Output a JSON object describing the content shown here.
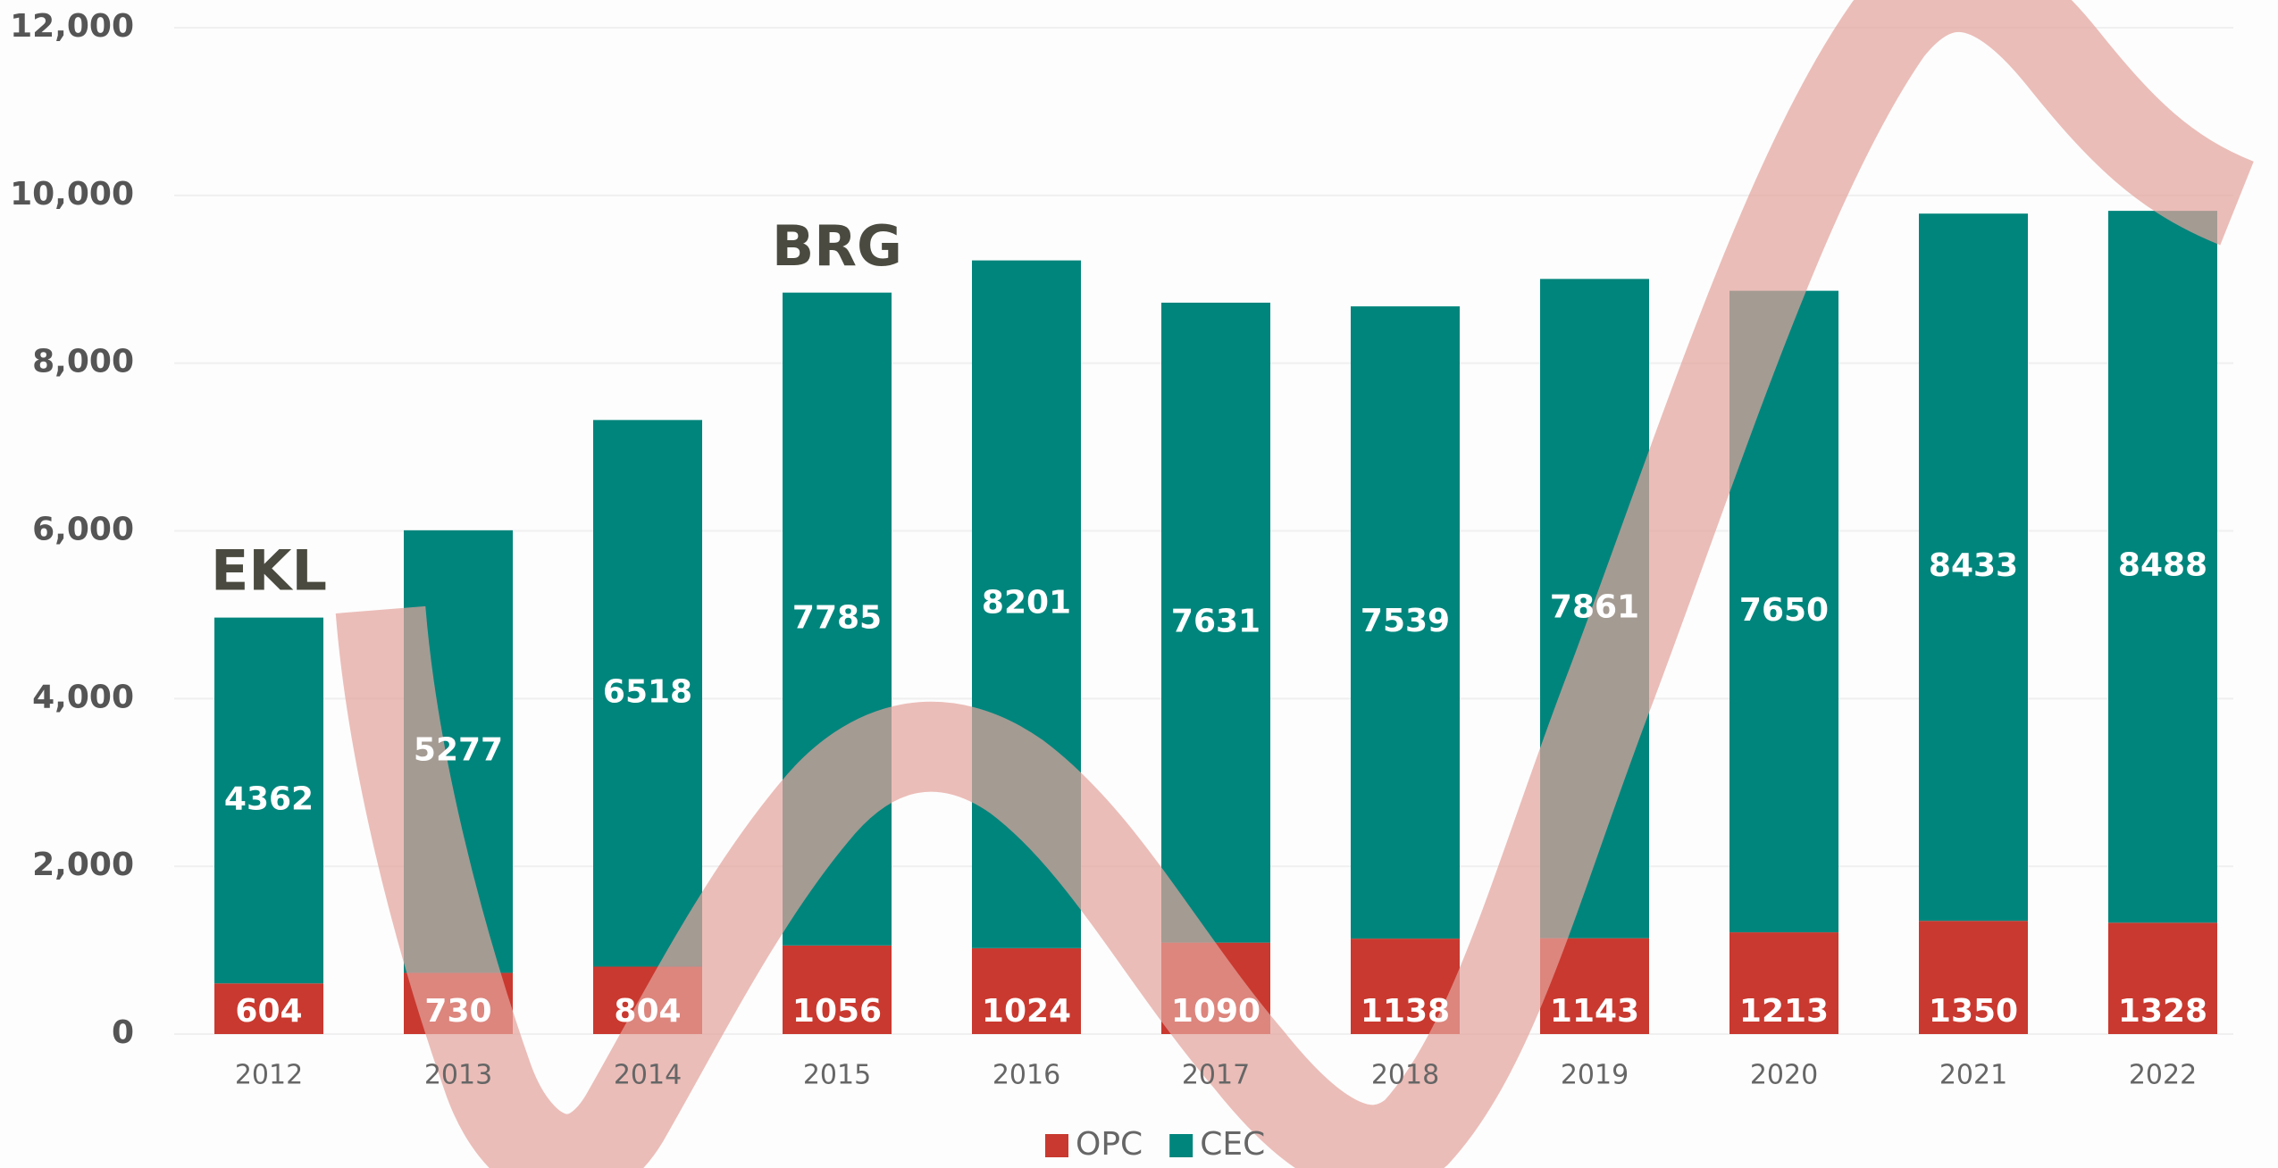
{
  "chart_data": {
    "type": "stacked_bar",
    "categories": [
      "2012",
      "2013",
      "2014",
      "2015",
      "2016",
      "2017",
      "2018",
      "2019",
      "2020",
      "2021",
      "2022"
    ],
    "series": [
      {
        "name": "OPC",
        "color": "#c9392f",
        "values": [
          604,
          730,
          804,
          1056,
          1024,
          1090,
          1138,
          1143,
          1213,
          1350,
          1328
        ]
      },
      {
        "name": "CEC",
        "color": "#00857c",
        "values": [
          4362,
          5277,
          6518,
          7785,
          8201,
          7631,
          7539,
          7861,
          7650,
          8433,
          8488
        ]
      }
    ],
    "annotations": [
      "EKL",
      "BRG"
    ],
    "ylim": [
      0,
      12000
    ],
    "yticks": [
      0,
      {
        "value": 2000,
        "label": "2,000"
      },
      {
        "value": 4000,
        "label": "4,000"
      },
      {
        "value": 6000,
        "label": "6,000"
      },
      {
        "value": 8000,
        "label": "8,000"
      },
      {
        "value": 10000,
        "label": "10,000"
      },
      {
        "value": 12000,
        "label": "12,000"
      }
    ],
    "grid": true,
    "legend": "bottom"
  }
}
